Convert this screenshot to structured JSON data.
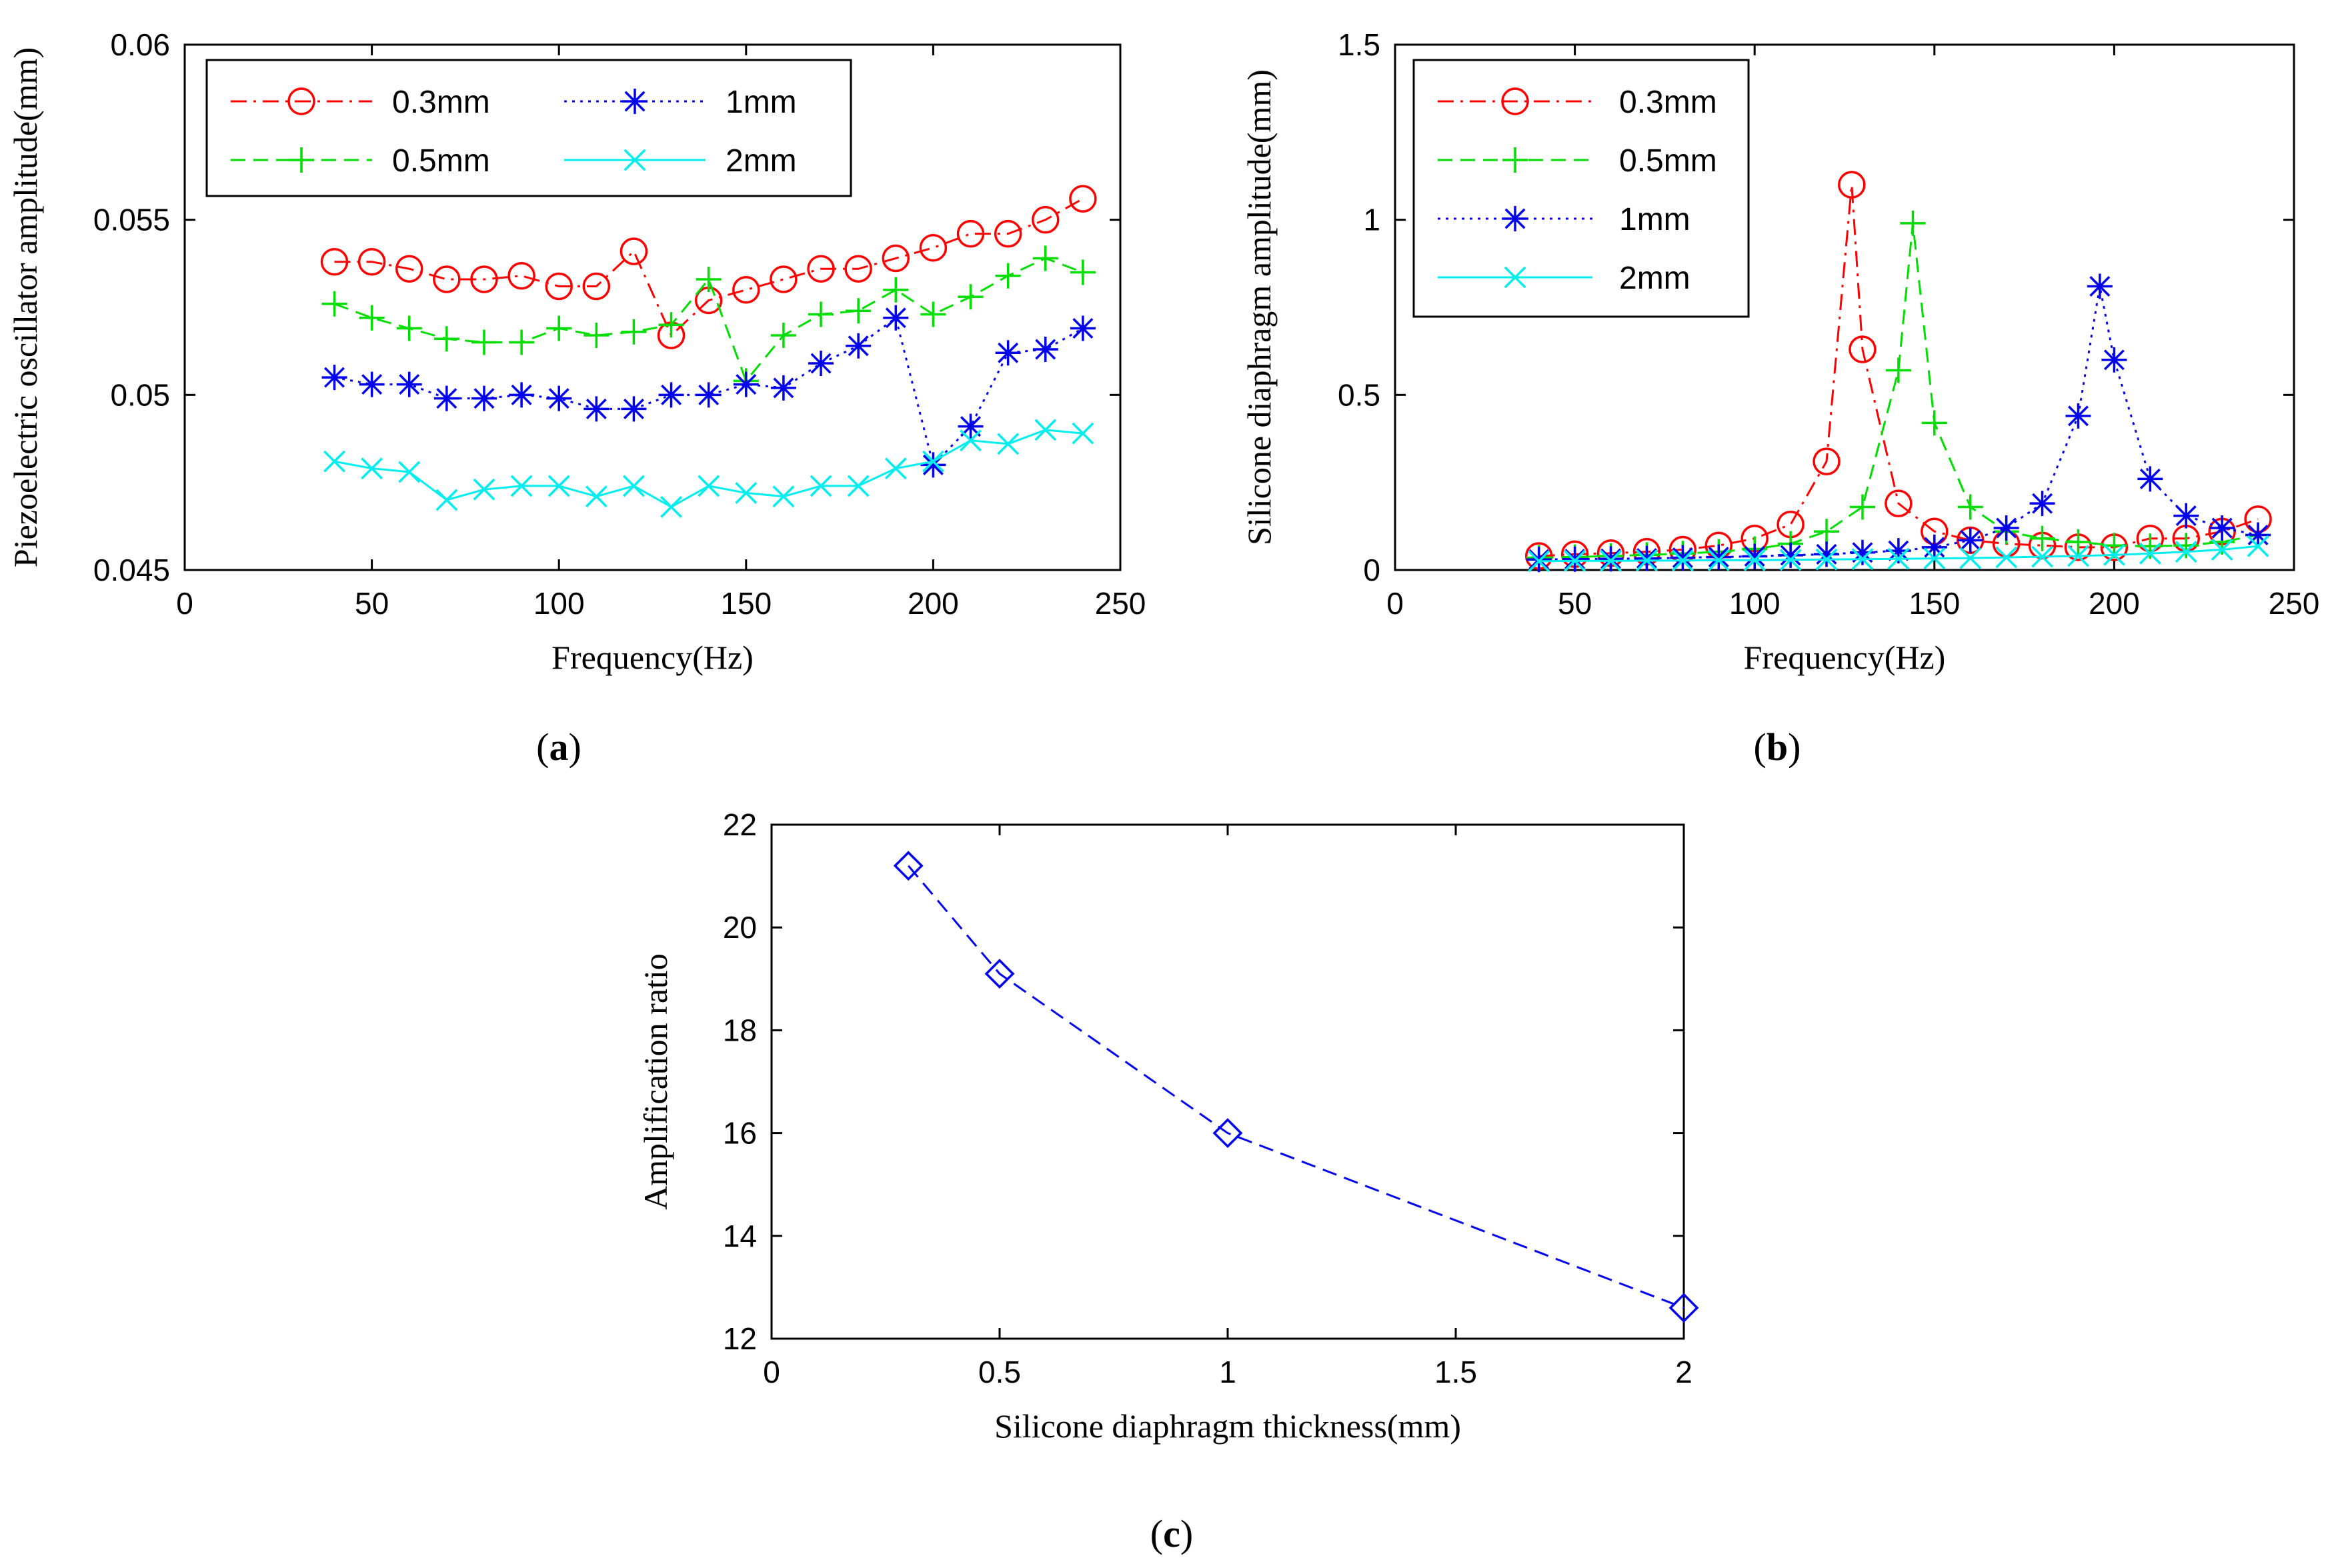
{
  "chart_data": [
    {
      "type": "line",
      "caption": "a",
      "xlabel": "Frequency(Hz)",
      "ylabel": "Piezoelectric oscillator amplitude(mm)",
      "xlim": [
        0,
        250
      ],
      "ylim": [
        0.045,
        0.06
      ],
      "xticks": [
        0,
        50,
        100,
        150,
        200,
        250
      ],
      "xtick_labels": [
        "0",
        "50",
        "100",
        "150",
        "200",
        "250"
      ],
      "yticks": [
        0.045,
        0.05,
        0.055,
        0.06
      ],
      "ytick_labels": [
        "0.045",
        "0.05",
        "0.055",
        "0.06"
      ],
      "legend_layout": "two-column",
      "legend_position": "top-left",
      "series": [
        {
          "name": "0.3mm",
          "color": "#ff0000",
          "dash": "dashdot",
          "marker": "circle",
          "x": [
            40,
            50,
            60,
            70,
            80,
            90,
            100,
            110,
            120,
            130,
            140,
            150,
            160,
            170,
            180,
            190,
            200,
            210,
            220,
            230,
            240
          ],
          "y": [
            0.0538,
            0.0538,
            0.0536,
            0.0533,
            0.0533,
            0.0534,
            0.0531,
            0.0531,
            0.0541,
            0.0517,
            0.0527,
            0.053,
            0.0533,
            0.0536,
            0.0536,
            0.0539,
            0.0542,
            0.0546,
            0.0546,
            0.055,
            0.0556
          ]
        },
        {
          "name": "0.5mm",
          "color": "#00dd00",
          "dash": "dashed",
          "marker": "plus",
          "x": [
            40,
            50,
            60,
            70,
            80,
            90,
            100,
            110,
            120,
            130,
            140,
            150,
            160,
            170,
            180,
            190,
            200,
            210,
            220,
            230,
            240
          ],
          "y": [
            0.0526,
            0.0522,
            0.0519,
            0.0516,
            0.0515,
            0.0515,
            0.0519,
            0.0517,
            0.0518,
            0.052,
            0.0533,
            0.0504,
            0.0517,
            0.0523,
            0.0524,
            0.053,
            0.0523,
            0.0528,
            0.0534,
            0.0539,
            0.0535
          ]
        },
        {
          "name": "1mm",
          "color": "#0000ee",
          "dash": "dotted",
          "marker": "star",
          "x": [
            40,
            50,
            60,
            70,
            80,
            90,
            100,
            110,
            120,
            130,
            140,
            150,
            160,
            170,
            180,
            190,
            200,
            210,
            220,
            230,
            240
          ],
          "y": [
            0.0505,
            0.0503,
            0.0503,
            0.0499,
            0.0499,
            0.05,
            0.0499,
            0.0496,
            0.0496,
            0.05,
            0.05,
            0.0503,
            0.0502,
            0.0509,
            0.0514,
            0.0522,
            0.048,
            0.0491,
            0.0512,
            0.0513,
            0.0519
          ]
        },
        {
          "name": "2mm",
          "color": "#00eeee",
          "dash": "solid",
          "marker": "x",
          "x": [
            40,
            50,
            60,
            70,
            80,
            90,
            100,
            110,
            120,
            130,
            140,
            150,
            160,
            170,
            180,
            190,
            200,
            210,
            220,
            230,
            240
          ],
          "y": [
            0.0481,
            0.0479,
            0.0478,
            0.047,
            0.0473,
            0.0474,
            0.0474,
            0.0471,
            0.0474,
            0.0468,
            0.0474,
            0.0472,
            0.0471,
            0.0474,
            0.0474,
            0.0479,
            0.0481,
            0.0487,
            0.0486,
            0.049,
            0.0489
          ]
        }
      ]
    },
    {
      "type": "line",
      "caption": "b",
      "xlabel": "Frequency(Hz)",
      "ylabel": "Silicone diaphragm amplitude(mm)",
      "xlim": [
        0,
        250
      ],
      "ylim": [
        0,
        1.5
      ],
      "xticks": [
        0,
        50,
        100,
        150,
        200,
        250
      ],
      "xtick_labels": [
        "0",
        "50",
        "100",
        "150",
        "200",
        "250"
      ],
      "yticks": [
        0,
        0.5,
        1,
        1.5
      ],
      "ytick_labels": [
        "0",
        "0.5",
        "1",
        "1.5"
      ],
      "legend_layout": "one-column",
      "legend_position": "top-left",
      "series": [
        {
          "name": "0.3mm",
          "color": "#ff0000",
          "dash": "dashdot",
          "marker": "circle",
          "x": [
            40,
            50,
            60,
            70,
            80,
            90,
            100,
            110,
            120,
            127,
            130,
            140,
            150,
            160,
            170,
            180,
            190,
            200,
            210,
            220,
            230,
            240
          ],
          "y": [
            0.04,
            0.045,
            0.048,
            0.052,
            0.058,
            0.07,
            0.09,
            0.13,
            0.31,
            1.1,
            0.63,
            0.19,
            0.11,
            0.085,
            0.075,
            0.07,
            0.065,
            0.065,
            0.09,
            0.09,
            0.11,
            0.145
          ]
        },
        {
          "name": "0.5mm",
          "color": "#00dd00",
          "dash": "dashed",
          "marker": "plus",
          "x": [
            40,
            50,
            60,
            70,
            80,
            90,
            100,
            110,
            120,
            130,
            140,
            144,
            150,
            160,
            170,
            180,
            190,
            200,
            210,
            220,
            230,
            240
          ],
          "y": [
            0.035,
            0.037,
            0.04,
            0.043,
            0.047,
            0.052,
            0.06,
            0.075,
            0.11,
            0.18,
            0.57,
            0.99,
            0.42,
            0.18,
            0.11,
            0.09,
            0.08,
            0.07,
            0.068,
            0.07,
            0.08,
            0.1
          ]
        },
        {
          "name": "1mm",
          "color": "#0000ee",
          "dash": "dotted",
          "marker": "star",
          "x": [
            40,
            50,
            60,
            70,
            80,
            90,
            100,
            110,
            120,
            130,
            140,
            150,
            160,
            170,
            180,
            190,
            196,
            200,
            210,
            220,
            230,
            240
          ],
          "y": [
            0.03,
            0.031,
            0.032,
            0.033,
            0.035,
            0.037,
            0.039,
            0.042,
            0.045,
            0.05,
            0.055,
            0.065,
            0.085,
            0.12,
            0.19,
            0.44,
            0.81,
            0.6,
            0.26,
            0.155,
            0.12,
            0.1
          ]
        },
        {
          "name": "2mm",
          "color": "#00eeee",
          "dash": "solid",
          "marker": "x",
          "x": [
            40,
            50,
            60,
            70,
            80,
            90,
            100,
            110,
            120,
            130,
            140,
            150,
            160,
            170,
            180,
            190,
            200,
            210,
            220,
            230,
            240
          ],
          "y": [
            0.025,
            0.026,
            0.026,
            0.027,
            0.027,
            0.028,
            0.028,
            0.029,
            0.03,
            0.031,
            0.032,
            0.033,
            0.034,
            0.036,
            0.038,
            0.04,
            0.043,
            0.047,
            0.052,
            0.058,
            0.068
          ]
        }
      ]
    },
    {
      "type": "line",
      "caption": "c",
      "xlabel": "Silicone diaphragm thickness(mm)",
      "ylabel": "Amplification ratio",
      "xlim": [
        0,
        2
      ],
      "ylim": [
        12,
        22
      ],
      "xticks": [
        0,
        0.5,
        1,
        1.5,
        2
      ],
      "xtick_labels": [
        "0",
        "0.5",
        "1",
        "1.5",
        "2"
      ],
      "yticks": [
        12,
        14,
        16,
        18,
        20,
        22
      ],
      "ytick_labels": [
        "12",
        "14",
        "16",
        "18",
        "20",
        "22"
      ],
      "series": [
        {
          "name": "Amplification ratio",
          "color": "#0000ee",
          "dash": "dashed",
          "marker": "diamond",
          "x": [
            0.3,
            0.5,
            1,
            2
          ],
          "y": [
            21.2,
            19.1,
            16.0,
            12.6
          ]
        }
      ]
    }
  ]
}
